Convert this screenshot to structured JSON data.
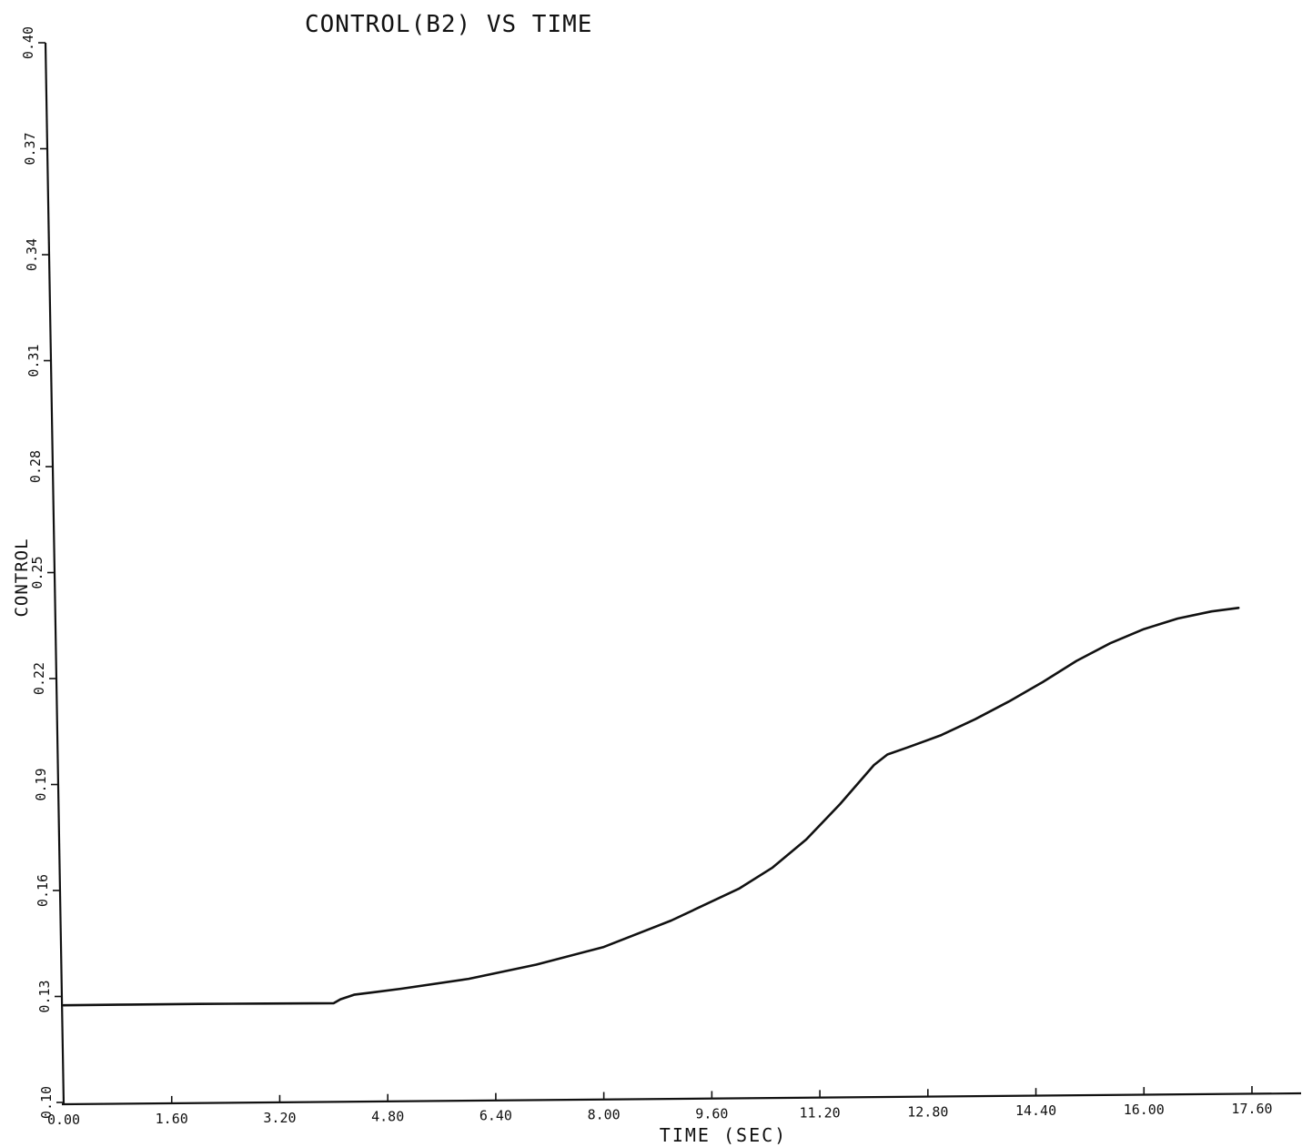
{
  "chart_data": {
    "type": "line",
    "title": "CONTROL(B2)  VS TIME",
    "xlabel": "TIME (SEC)",
    "ylabel": "CONTROL",
    "xlim": [
      0.0,
      17.6
    ],
    "ylim": [
      0.1,
      0.4
    ],
    "x_ticks": [
      "0.00",
      "1.60",
      "3.20",
      "4.80",
      "6.40",
      "8.00",
      "9.60",
      "11.20",
      "12.80",
      "14.40",
      "16.00",
      "17.60"
    ],
    "y_ticks": [
      "0.10",
      "0.13",
      "0.16",
      "0.19",
      "0.22",
      "0.25",
      "0.28",
      "0.31",
      "0.34",
      "0.37",
      "0.40"
    ],
    "grid": false,
    "series": [
      {
        "name": "",
        "x": [
          0.0,
          1.0,
          2.0,
          3.0,
          4.0,
          4.1,
          4.3,
          4.6,
          5.0,
          6.0,
          7.0,
          8.0,
          9.0,
          10.0,
          10.5,
          11.0,
          11.5,
          12.0,
          12.2,
          12.5,
          13.0,
          13.5,
          14.0,
          14.5,
          15.0,
          15.5,
          16.0,
          16.5,
          17.0,
          17.4
        ],
        "y": [
          0.1275,
          0.1277,
          0.1279,
          0.128,
          0.1281,
          0.1292,
          0.1305,
          0.1312,
          0.1322,
          0.135,
          0.139,
          0.144,
          0.1515,
          0.1605,
          0.1665,
          0.1745,
          0.1845,
          0.1955,
          0.1985,
          0.2005,
          0.204,
          0.2085,
          0.2135,
          0.219,
          0.225,
          0.23,
          0.234,
          0.237,
          0.239,
          0.24
        ]
      }
    ]
  }
}
